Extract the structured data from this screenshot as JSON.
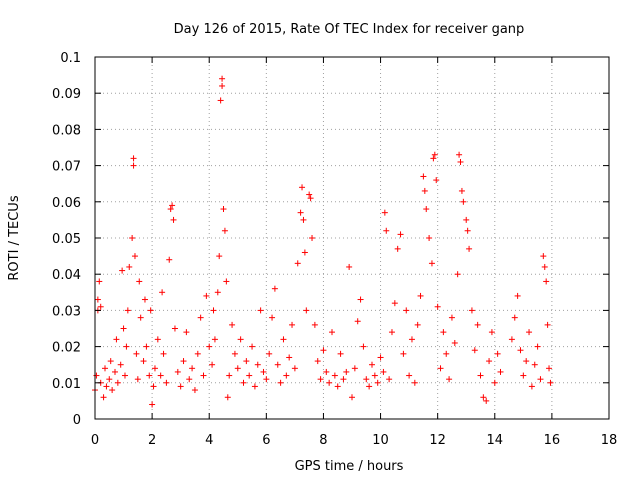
{
  "chart_data": {
    "type": "scatter",
    "title": "Day 126 of 2015, Rate Of TEC Index for receiver ganp",
    "xlabel": "GPS time / hours",
    "ylabel": "ROTI / TECUs",
    "xlim": [
      0,
      18
    ],
    "ylim": [
      0,
      0.1
    ],
    "xticks": [
      0,
      2,
      4,
      6,
      8,
      10,
      12,
      14,
      16,
      18
    ],
    "xtick_labels": [
      "0",
      "2",
      "4",
      "6",
      "8",
      "10",
      "12",
      "14",
      "16",
      "18"
    ],
    "yticks": [
      0,
      0.01,
      0.02,
      0.03,
      0.04,
      0.05,
      0.06,
      0.07,
      0.08,
      0.09,
      0.1
    ],
    "ytick_labels": [
      "0",
      "0.01",
      "0.02",
      "0.03",
      "0.04",
      "0.05",
      "0.06",
      "0.07",
      "0.08",
      "0.09",
      "0.1"
    ],
    "grid": true,
    "marker": "+",
    "color": "#ff0000",
    "series": [
      {
        "name": "ROTI",
        "points": [
          [
            0.0,
            0.008
          ],
          [
            0.05,
            0.012
          ],
          [
            0.1,
            0.03
          ],
          [
            0.1,
            0.033
          ],
          [
            0.15,
            0.038
          ],
          [
            0.2,
            0.031
          ],
          [
            0.2,
            0.01
          ],
          [
            0.3,
            0.006
          ],
          [
            0.35,
            0.014
          ],
          [
            0.4,
            0.009
          ],
          [
            0.5,
            0.011
          ],
          [
            0.55,
            0.016
          ],
          [
            0.6,
            0.008
          ],
          [
            0.7,
            0.013
          ],
          [
            0.75,
            0.022
          ],
          [
            0.8,
            0.01
          ],
          [
            0.9,
            0.015
          ],
          [
            0.95,
            0.041
          ],
          [
            1.0,
            0.025
          ],
          [
            1.05,
            0.012
          ],
          [
            1.1,
            0.02
          ],
          [
            1.15,
            0.03
          ],
          [
            1.2,
            0.042
          ],
          [
            1.3,
            0.05
          ],
          [
            1.35,
            0.072
          ],
          [
            1.35,
            0.07
          ],
          [
            1.4,
            0.045
          ],
          [
            1.45,
            0.018
          ],
          [
            1.5,
            0.011
          ],
          [
            1.55,
            0.038
          ],
          [
            1.6,
            0.028
          ],
          [
            1.7,
            0.016
          ],
          [
            1.75,
            0.033
          ],
          [
            1.8,
            0.02
          ],
          [
            1.9,
            0.012
          ],
          [
            1.95,
            0.03
          ],
          [
            2.0,
            0.004
          ],
          [
            2.05,
            0.009
          ],
          [
            2.1,
            0.014
          ],
          [
            2.2,
            0.022
          ],
          [
            2.3,
            0.012
          ],
          [
            2.35,
            0.035
          ],
          [
            2.4,
            0.018
          ],
          [
            2.5,
            0.01
          ],
          [
            2.6,
            0.044
          ],
          [
            2.65,
            0.058
          ],
          [
            2.7,
            0.059
          ],
          [
            2.75,
            0.055
          ],
          [
            2.8,
            0.025
          ],
          [
            2.9,
            0.013
          ],
          [
            3.0,
            0.009
          ],
          [
            3.1,
            0.016
          ],
          [
            3.2,
            0.024
          ],
          [
            3.3,
            0.011
          ],
          [
            3.4,
            0.014
          ],
          [
            3.5,
            0.008
          ],
          [
            3.6,
            0.018
          ],
          [
            3.7,
            0.028
          ],
          [
            3.8,
            0.012
          ],
          [
            3.9,
            0.034
          ],
          [
            4.0,
            0.02
          ],
          [
            4.1,
            0.015
          ],
          [
            4.15,
            0.03
          ],
          [
            4.2,
            0.022
          ],
          [
            4.3,
            0.035
          ],
          [
            4.35,
            0.045
          ],
          [
            4.4,
            0.088
          ],
          [
            4.45,
            0.092
          ],
          [
            4.45,
            0.094
          ],
          [
            4.5,
            0.058
          ],
          [
            4.55,
            0.052
          ],
          [
            4.6,
            0.038
          ],
          [
            4.65,
            0.006
          ],
          [
            4.7,
            0.012
          ],
          [
            4.8,
            0.026
          ],
          [
            4.9,
            0.018
          ],
          [
            5.0,
            0.014
          ],
          [
            5.1,
            0.022
          ],
          [
            5.2,
            0.01
          ],
          [
            5.3,
            0.016
          ],
          [
            5.4,
            0.012
          ],
          [
            5.5,
            0.02
          ],
          [
            5.6,
            0.009
          ],
          [
            5.7,
            0.015
          ],
          [
            5.8,
            0.03
          ],
          [
            5.9,
            0.013
          ],
          [
            6.0,
            0.011
          ],
          [
            6.1,
            0.018
          ],
          [
            6.2,
            0.028
          ],
          [
            6.3,
            0.036
          ],
          [
            6.4,
            0.015
          ],
          [
            6.5,
            0.01
          ],
          [
            6.6,
            0.022
          ],
          [
            6.7,
            0.012
          ],
          [
            6.8,
            0.017
          ],
          [
            6.9,
            0.026
          ],
          [
            7.0,
            0.014
          ],
          [
            7.1,
            0.043
          ],
          [
            7.2,
            0.057
          ],
          [
            7.25,
            0.064
          ],
          [
            7.3,
            0.055
          ],
          [
            7.35,
            0.046
          ],
          [
            7.4,
            0.03
          ],
          [
            7.5,
            0.062
          ],
          [
            7.55,
            0.061
          ],
          [
            7.6,
            0.05
          ],
          [
            7.7,
            0.026
          ],
          [
            7.8,
            0.016
          ],
          [
            7.9,
            0.011
          ],
          [
            8.0,
            0.019
          ],
          [
            8.1,
            0.013
          ],
          [
            8.2,
            0.01
          ],
          [
            8.3,
            0.024
          ],
          [
            8.4,
            0.012
          ],
          [
            8.5,
            0.009
          ],
          [
            8.6,
            0.018
          ],
          [
            8.7,
            0.011
          ],
          [
            8.8,
            0.013
          ],
          [
            8.9,
            0.042
          ],
          [
            9.0,
            0.006
          ],
          [
            9.1,
            0.014
          ],
          [
            9.2,
            0.027
          ],
          [
            9.3,
            0.033
          ],
          [
            9.4,
            0.02
          ],
          [
            9.5,
            0.011
          ],
          [
            9.6,
            0.009
          ],
          [
            9.7,
            0.015
          ],
          [
            9.8,
            0.012
          ],
          [
            9.9,
            0.01
          ],
          [
            10.0,
            0.017
          ],
          [
            10.1,
            0.013
          ],
          [
            10.15,
            0.057
          ],
          [
            10.2,
            0.052
          ],
          [
            10.3,
            0.011
          ],
          [
            10.4,
            0.024
          ],
          [
            10.5,
            0.032
          ],
          [
            10.6,
            0.047
          ],
          [
            10.7,
            0.051
          ],
          [
            10.8,
            0.018
          ],
          [
            10.9,
            0.03
          ],
          [
            11.0,
            0.012
          ],
          [
            11.1,
            0.022
          ],
          [
            11.2,
            0.01
          ],
          [
            11.3,
            0.026
          ],
          [
            11.4,
            0.034
          ],
          [
            11.5,
            0.067
          ],
          [
            11.55,
            0.063
          ],
          [
            11.6,
            0.058
          ],
          [
            11.7,
            0.05
          ],
          [
            11.8,
            0.043
          ],
          [
            11.85,
            0.072
          ],
          [
            11.9,
            0.073
          ],
          [
            11.95,
            0.066
          ],
          [
            12.0,
            0.031
          ],
          [
            12.1,
            0.014
          ],
          [
            12.2,
            0.024
          ],
          [
            12.3,
            0.018
          ],
          [
            12.4,
            0.011
          ],
          [
            12.5,
            0.028
          ],
          [
            12.6,
            0.021
          ],
          [
            12.7,
            0.04
          ],
          [
            12.75,
            0.073
          ],
          [
            12.8,
            0.071
          ],
          [
            12.85,
            0.063
          ],
          [
            12.9,
            0.06
          ],
          [
            13.0,
            0.055
          ],
          [
            13.05,
            0.052
          ],
          [
            13.1,
            0.047
          ],
          [
            13.2,
            0.03
          ],
          [
            13.3,
            0.019
          ],
          [
            13.4,
            0.026
          ],
          [
            13.5,
            0.012
          ],
          [
            13.6,
            0.006
          ],
          [
            13.7,
            0.005
          ],
          [
            13.8,
            0.016
          ],
          [
            13.9,
            0.024
          ],
          [
            14.0,
            0.01
          ],
          [
            14.1,
            0.018
          ],
          [
            14.2,
            0.013
          ],
          [
            14.6,
            0.022
          ],
          [
            14.7,
            0.028
          ],
          [
            14.8,
            0.034
          ],
          [
            14.9,
            0.019
          ],
          [
            15.0,
            0.012
          ],
          [
            15.1,
            0.016
          ],
          [
            15.2,
            0.024
          ],
          [
            15.3,
            0.009
          ],
          [
            15.4,
            0.015
          ],
          [
            15.5,
            0.02
          ],
          [
            15.6,
            0.011
          ],
          [
            15.7,
            0.045
          ],
          [
            15.75,
            0.042
          ],
          [
            15.8,
            0.038
          ],
          [
            15.85,
            0.026
          ],
          [
            15.9,
            0.014
          ],
          [
            15.95,
            0.01
          ]
        ]
      }
    ]
  }
}
